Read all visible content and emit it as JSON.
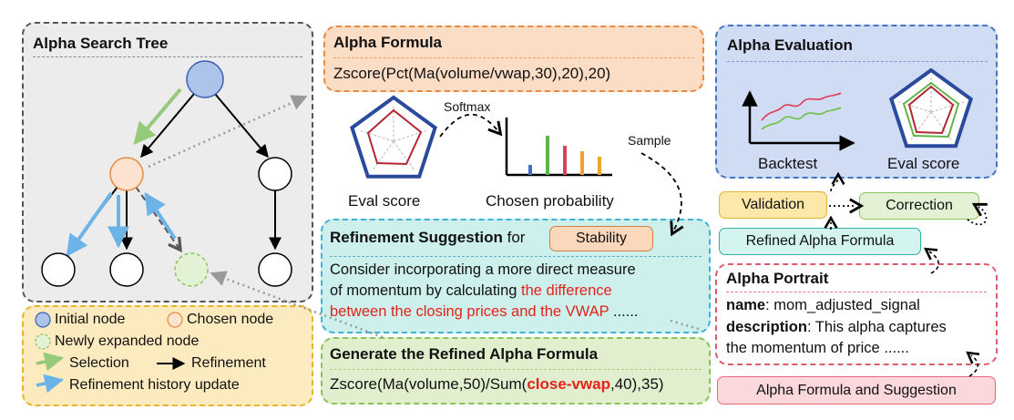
{
  "search_tree": {
    "title": "Alpha Search Tree"
  },
  "legend": {
    "initial": "Initial node",
    "chosen": "Chosen node",
    "expanded": "Newly expanded node",
    "selection": "Selection",
    "refinement": "Refinement",
    "history": "Refinement history update"
  },
  "formula": {
    "title": "Alpha Formula",
    "text": "Zscore(Pct(Ma(volume/vwap,30),20),20)"
  },
  "middle": {
    "softmax": "Softmax",
    "sample": "Sample",
    "eval_score": "Eval score",
    "chosen_probability": "Chosen probability"
  },
  "suggestion": {
    "title": "Refinement Suggestion",
    "for": "for",
    "tag": "Stability",
    "line1": "Consider incorporating a more direct measure",
    "line2": "of momentum by calculating",
    "highlight_a": "the difference",
    "highlight_b": "between the closing prices and the VWAP",
    "ellipsis": "......"
  },
  "generate": {
    "title": "Generate the Refined Alpha Formula",
    "prefix": "Zscore(Ma(volume,50)/Sum(",
    "highlight": "close-vwap",
    "suffix": ",40),35)"
  },
  "evaluation": {
    "title": "Alpha Evaluation",
    "backtest": "Backtest",
    "eval_score": "Eval score"
  },
  "validation": "Validation",
  "correction": "Correction",
  "refined": "Refined Alpha Formula",
  "portrait": {
    "title": "Alpha Portrait",
    "name_label": "name",
    "name_value": ": mom_adjusted_signal",
    "desc_label": "description",
    "desc_value": ": This alpha captures",
    "desc_line2": "the momentum of price ......"
  },
  "alpha_suggestion": "Alpha Formula and Suggestion",
  "colors": {
    "blue_node": "#aec3ea",
    "orange_node": "#fde3cf",
    "green_arrow": "#97c97a",
    "blue_arrow": "#6cb4e8",
    "red": "#e2231a"
  }
}
